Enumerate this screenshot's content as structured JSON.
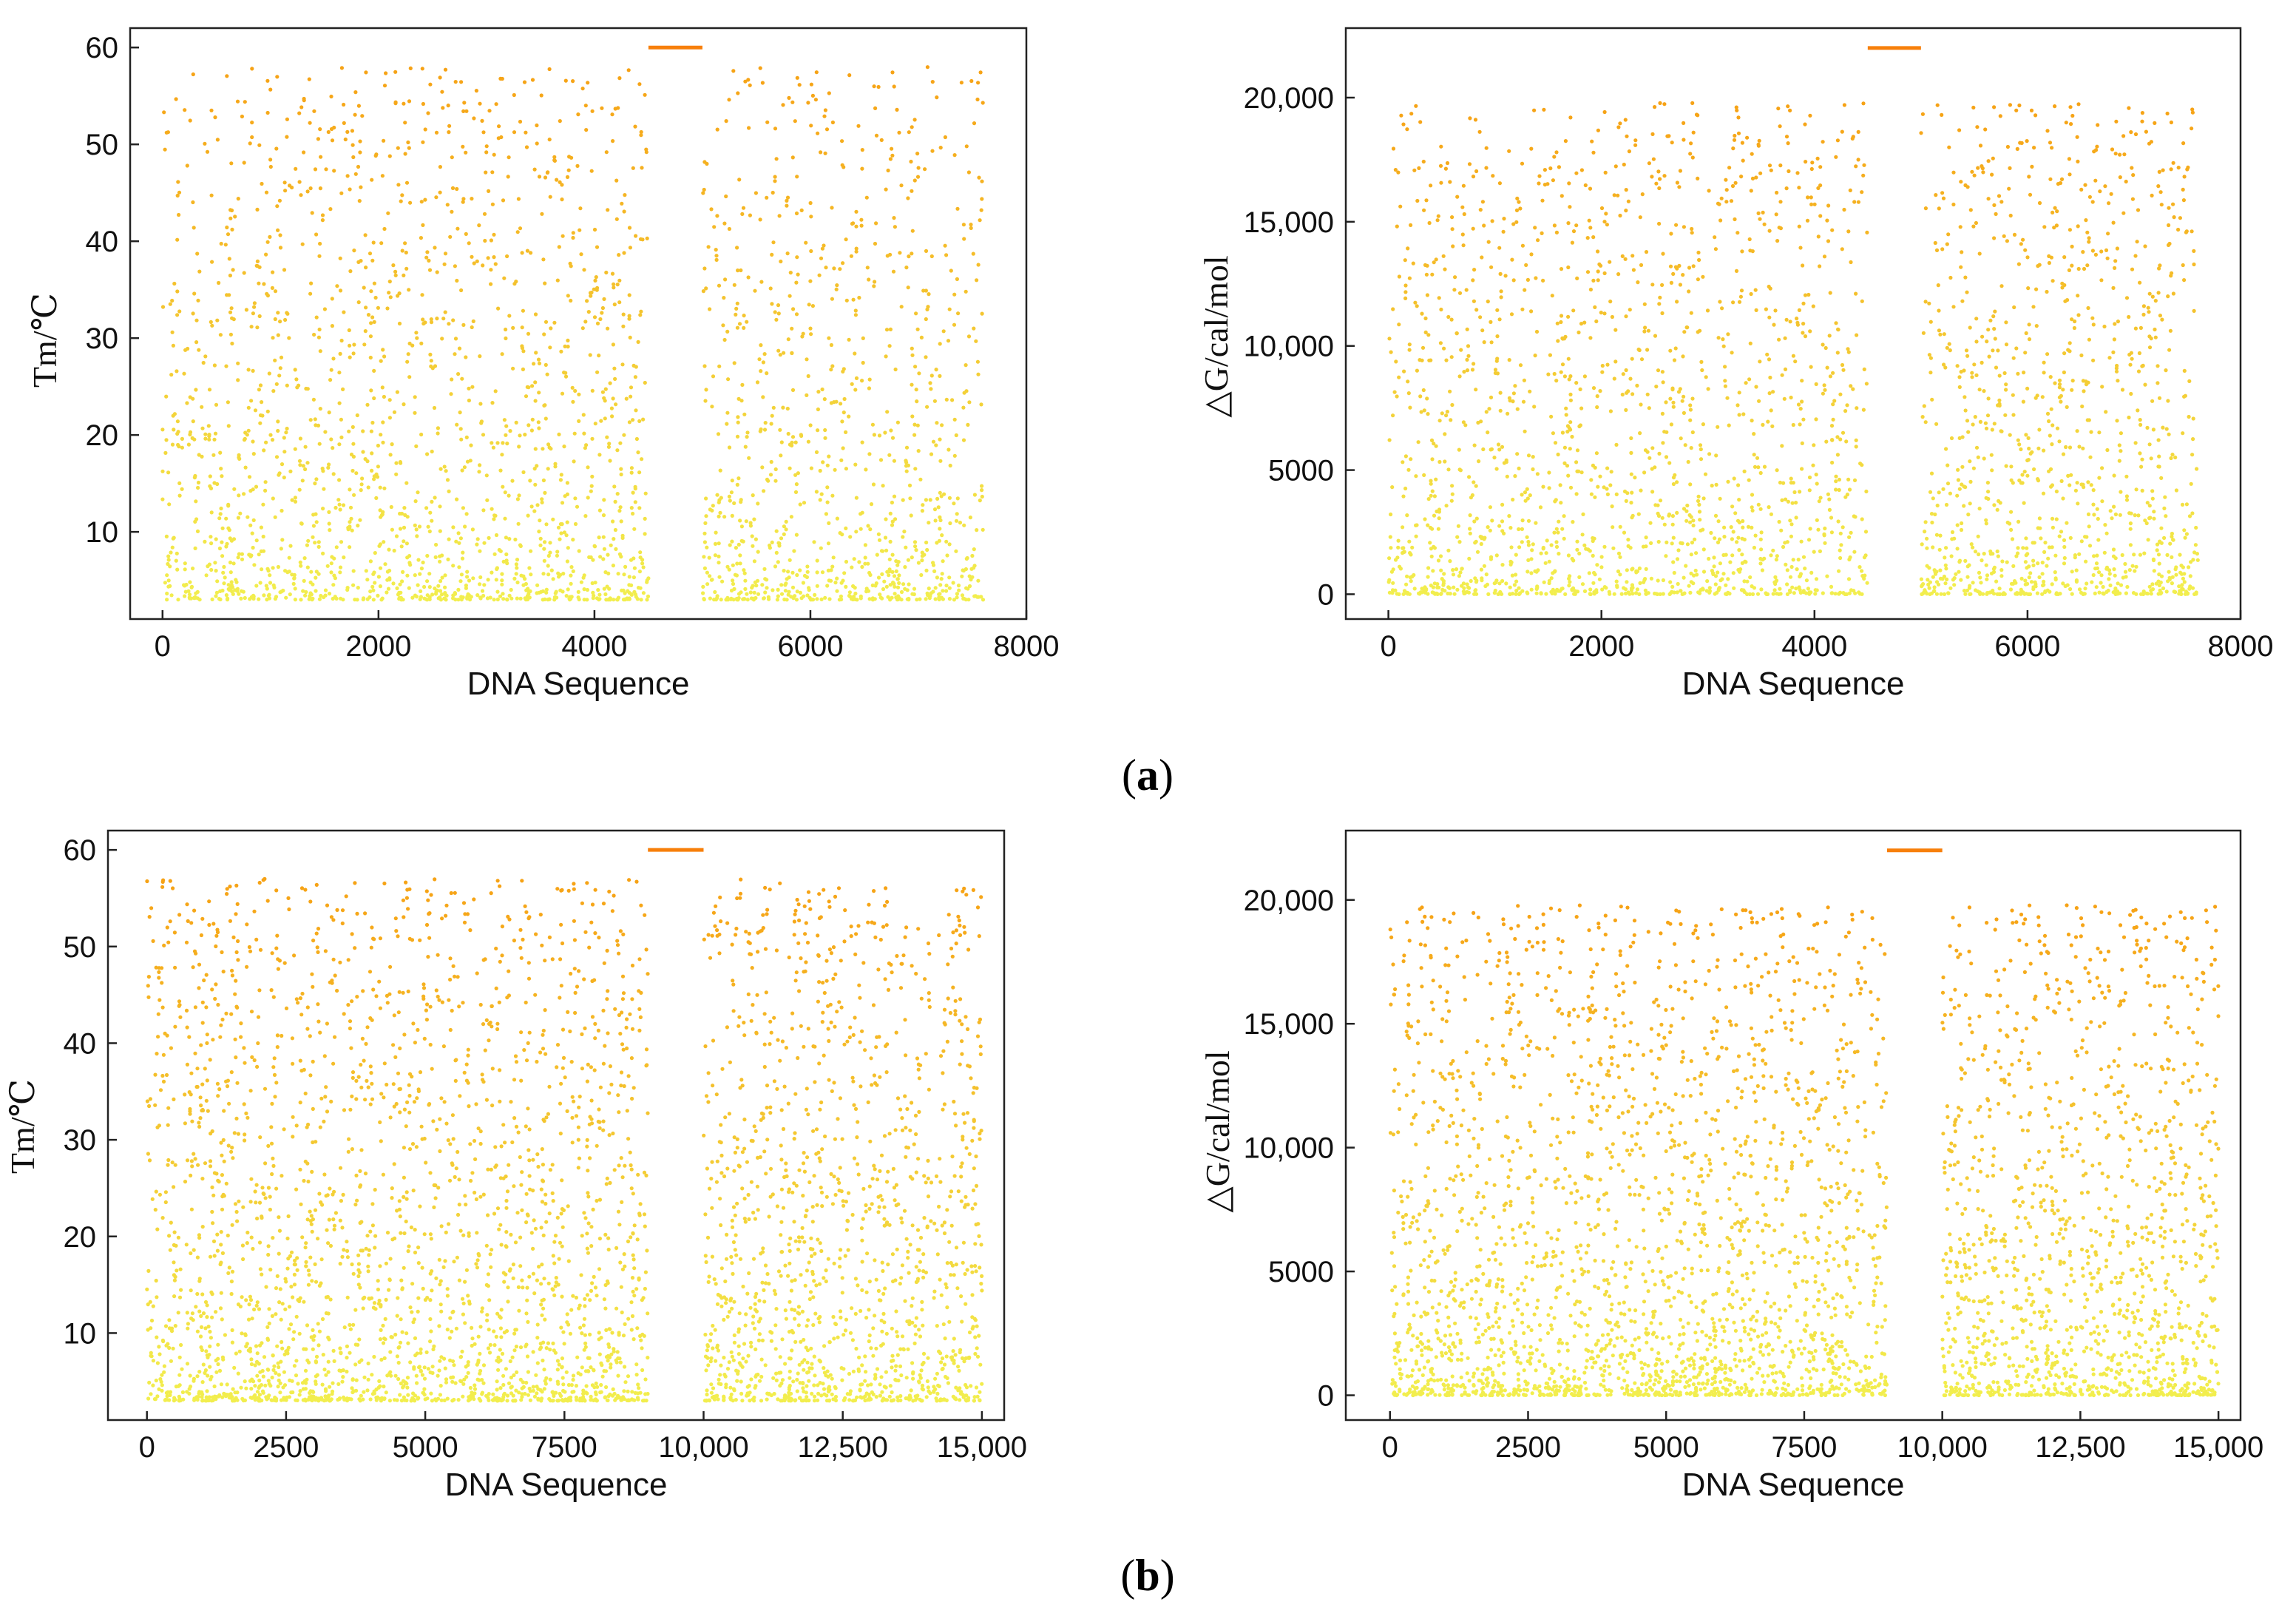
{
  "figure": {
    "label_a": "a",
    "label_b": "b"
  },
  "chart_data": [
    {
      "id": "a-tm",
      "type": "scatter",
      "title": "",
      "xlabel": "DNA Sequence",
      "ylabel": "Tm/℃",
      "xlim": [
        -300,
        8000
      ],
      "ylim": [
        1,
        62
      ],
      "xticks": [
        0,
        2000,
        4000,
        6000,
        8000
      ],
      "xtick_labels": [
        "0",
        "2000",
        "4000",
        "6000",
        "8000"
      ],
      "yticks": [
        10,
        20,
        30,
        40,
        50,
        60
      ],
      "ytick_labels": [
        "10",
        "20",
        "30",
        "40",
        "50",
        "60"
      ],
      "x_ranges": [
        [
          0,
          4500
        ],
        [
          5000,
          7600
        ]
      ],
      "y_range": [
        3,
        58
      ],
      "n_points": 2600,
      "gap": [
        4500,
        5000
      ],
      "legend_line": {
        "x": [
          4500,
          5000
        ],
        "y": 60
      },
      "color_low": "#f2ee4e",
      "color_high": "#f6a215",
      "line_color": "#f77f0a",
      "grid": false
    },
    {
      "id": "a-dg",
      "type": "scatter",
      "title": "",
      "xlabel": "DNA Sequence",
      "ylabel": "△G/cal/mol",
      "xlim": [
        -400,
        8000
      ],
      "ylim": [
        -1000,
        22800
      ],
      "xticks": [
        0,
        2000,
        4000,
        6000,
        8000
      ],
      "xtick_labels": [
        "0",
        "2000",
        "4000",
        "6000",
        "8000"
      ],
      "yticks": [
        0,
        5000,
        10000,
        15000,
        20000
      ],
      "ytick_labels": [
        "0",
        "5000",
        "10,000",
        "15,000",
        "20,000"
      ],
      "x_ranges": [
        [
          0,
          4500
        ],
        [
          5000,
          7600
        ]
      ],
      "y_range": [
        0,
        19800
      ],
      "n_points": 2600,
      "gap": [
        4500,
        5000
      ],
      "legend_line": {
        "x": [
          4500,
          5000
        ],
        "y": 22000
      },
      "color_low": "#f2ee4e",
      "color_high": "#f6a215",
      "line_color": "#f77f0a",
      "grid": false
    },
    {
      "id": "b-tm",
      "type": "scatter",
      "title": "",
      "xlabel": "DNA Sequence",
      "ylabel": "Tm/℃",
      "xlim": [
        -700,
        15400
      ],
      "ylim": [
        1,
        62
      ],
      "xticks": [
        0,
        2500,
        5000,
        7500,
        10000,
        12500,
        15000
      ],
      "xtick_labels": [
        "0",
        "2500",
        "5000",
        "7500",
        "10,000",
        "12,500",
        "15,000"
      ],
      "yticks": [
        10,
        20,
        30,
        40,
        50,
        60
      ],
      "ytick_labels": [
        "10",
        "20",
        "30",
        "40",
        "50",
        "60"
      ],
      "x_ranges": [
        [
          0,
          9000
        ],
        [
          10000,
          15000
        ]
      ],
      "y_range": [
        3,
        57
      ],
      "n_points": 3600,
      "gap": [
        9000,
        10000
      ],
      "legend_line": {
        "x": [
          9000,
          10000
        ],
        "y": 60
      },
      "color_low": "#f2ee4e",
      "color_high": "#f6a215",
      "line_color": "#f77f0a",
      "grid": false
    },
    {
      "id": "b-dg",
      "type": "scatter",
      "title": "",
      "xlabel": "DNA Sequence",
      "ylabel": "△G/cal/mol",
      "xlim": [
        -800,
        15400
      ],
      "ylim": [
        -1000,
        22800
      ],
      "xticks": [
        0,
        2500,
        5000,
        7500,
        10000,
        12500,
        15000
      ],
      "xtick_labels": [
        "0",
        "2500",
        "5000",
        "7500",
        "10,000",
        "12,500",
        "15,000"
      ],
      "yticks": [
        0,
        5000,
        10000,
        15000,
        20000
      ],
      "ytick_labels": [
        "0",
        "5000",
        "10,000",
        "15,000",
        "20,000"
      ],
      "x_ranges": [
        [
          0,
          9000
        ],
        [
          10000,
          15000
        ]
      ],
      "y_range": [
        0,
        19800
      ],
      "n_points": 3600,
      "gap": [
        9000,
        10000
      ],
      "legend_line": {
        "x": [
          9000,
          10000
        ],
        "y": 22000
      },
      "color_low": "#f2ee4e",
      "color_high": "#f6a215",
      "line_color": "#f77f0a",
      "grid": false
    }
  ]
}
